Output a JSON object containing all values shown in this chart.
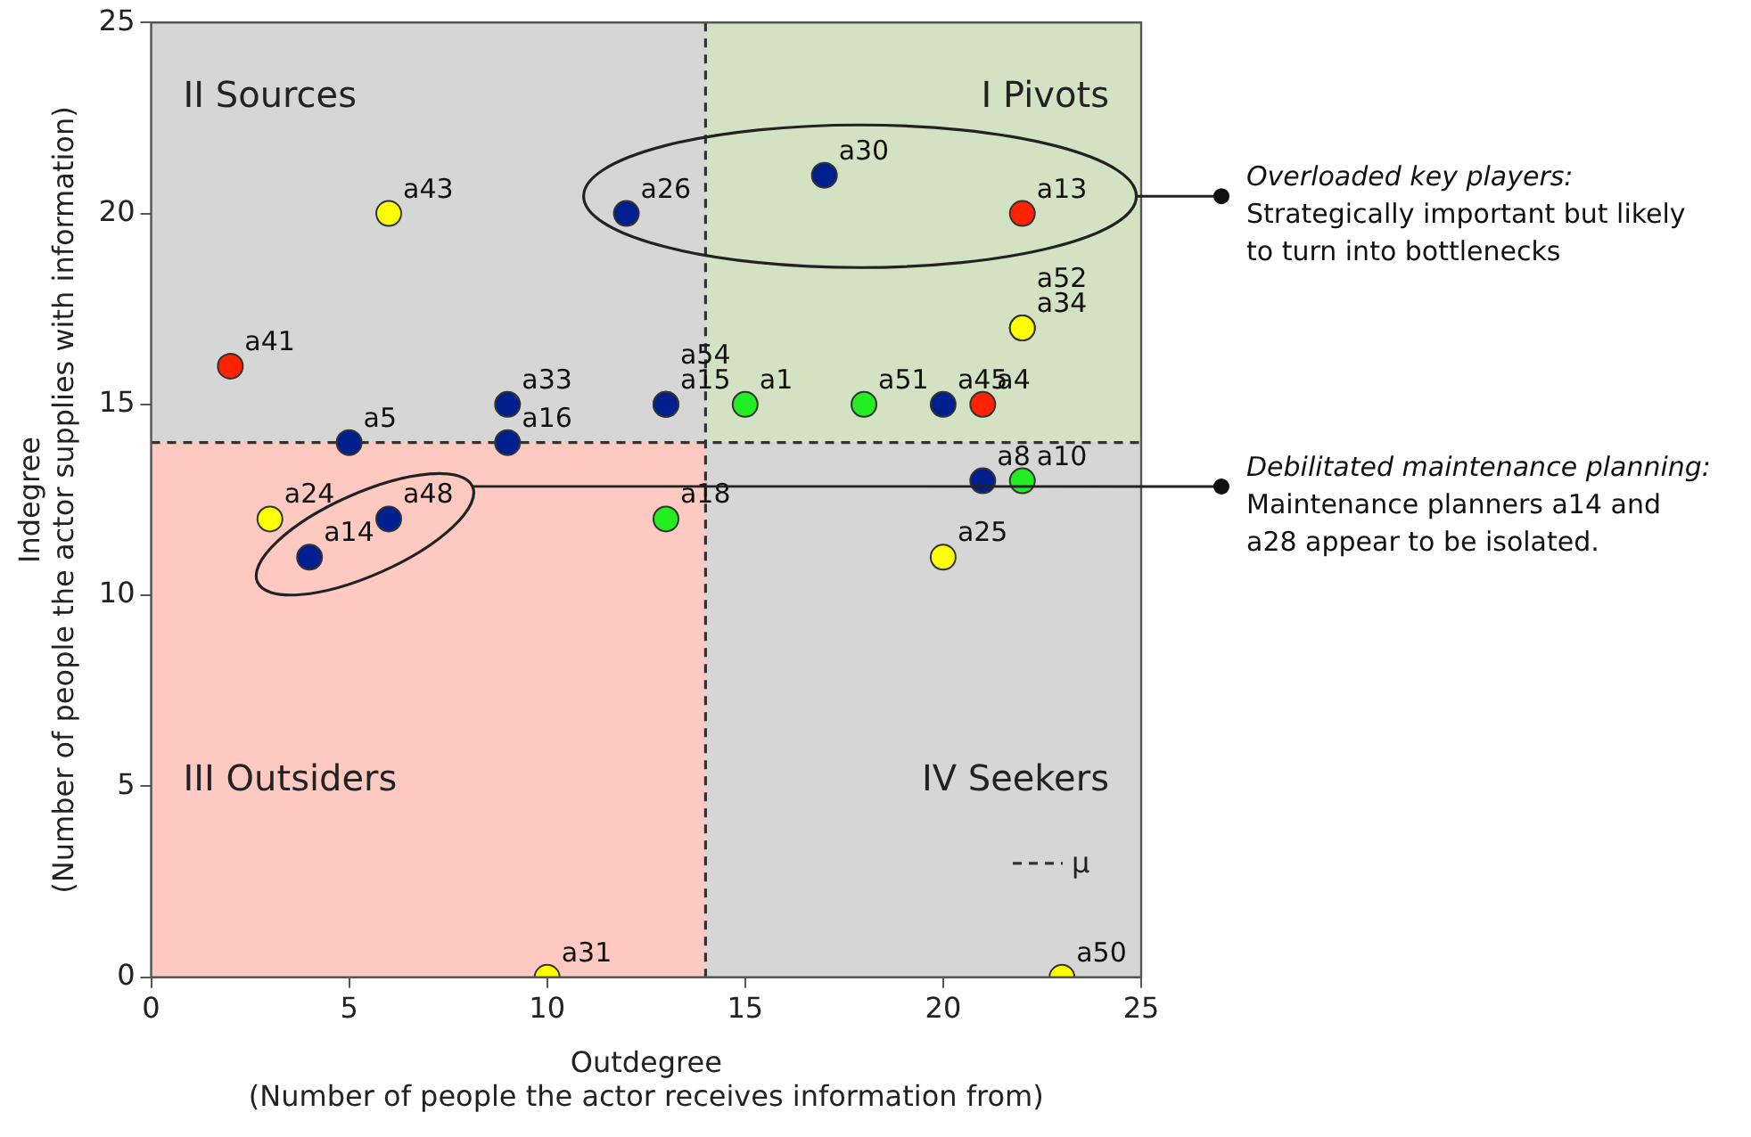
{
  "chart_data": {
    "type": "scatter",
    "xlabel": "Outdegree\n(Number of people the actor receives information from)",
    "ylabel": "Indegree\n(Number of people the actor supplies with information)",
    "xlim": [
      0,
      25
    ],
    "xticks": [
      0,
      5,
      10,
      15,
      20,
      25
    ],
    "ylim": [
      0,
      25
    ],
    "yticks": [
      0,
      5,
      10,
      15,
      20,
      25
    ],
    "grid": false,
    "marker": "circle",
    "legend": "bottom right",
    "ref_lines": [
      {
        "axis": "x",
        "value": 14,
        "label": "μ",
        "color": "#333333",
        "line_style": "dashed"
      },
      {
        "axis": "y",
        "value": 14,
        "color": "#333333",
        "line_style": "dashed"
      }
    ],
    "series": [
      {
        "color": "#ffff00",
        "x": [
          6,
          22,
          3,
          20,
          10,
          23
        ],
        "values": [
          20,
          17,
          12,
          11,
          0,
          0
        ],
        "value_labels": [
          "a43",
          "a34",
          "a24",
          "a25",
          "a31",
          "a50"
        ]
      },
      {
        "color": "#001f8f",
        "x": [
          12,
          17,
          22,
          5,
          9,
          9,
          13,
          13,
          20,
          21,
          6,
          4
        ],
        "values": [
          20,
          21,
          17,
          14,
          15,
          14,
          15,
          15,
          15,
          13,
          12,
          11
        ],
        "value_labels": [
          "a26",
          "a30",
          "a52",
          "a5",
          "a33",
          "a16",
          "a15",
          "a54",
          "a45",
          "a8",
          "a48",
          "a14"
        ]
      },
      {
        "color": "#ff2200",
        "x": [
          22,
          2,
          21
        ],
        "values": [
          20,
          16,
          15
        ],
        "value_labels": [
          "a13",
          "a41",
          "a4"
        ]
      },
      {
        "color": "#22ee22",
        "x": [
          15,
          18,
          22,
          13
        ],
        "values": [
          15,
          15,
          13,
          12
        ],
        "value_labels": [
          "a1",
          "a51",
          "a10",
          "a18"
        ]
      }
    ],
    "annotations": [
      "II Sources",
      "I Pivots",
      "III Outsiders",
      "IV Seekers",
      "Overloaded key players: Strategically important but likely to turn into bottlenecks",
      "Debilitated maintenance planning: Maintenance planners a14 and a28 appear to be isolated."
    ]
  }
}
